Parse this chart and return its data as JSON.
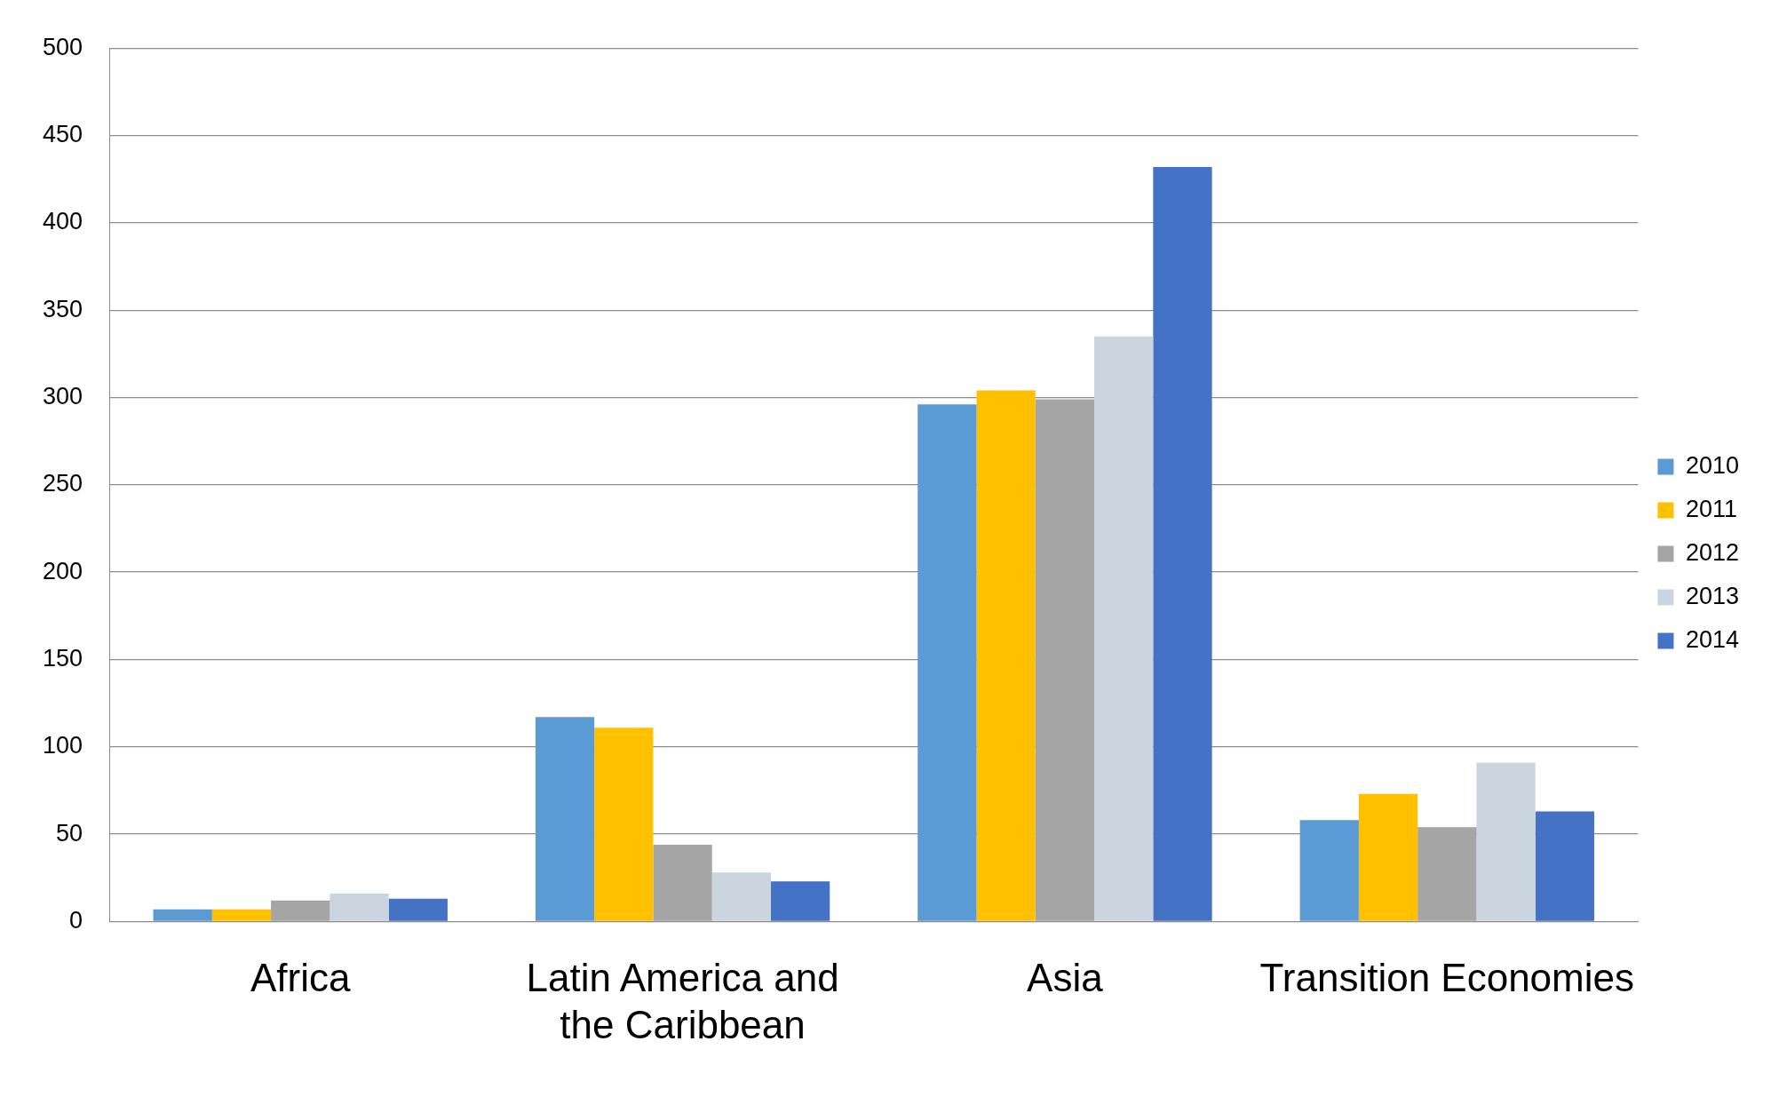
{
  "chart_data": {
    "type": "bar",
    "categories": [
      "Africa",
      "Latin America and the Caribbean",
      "Asia",
      "Transition Economies"
    ],
    "series": [
      {
        "name": "2010",
        "color": "#5b9bd5",
        "values": [
          7,
          117,
          296,
          58
        ]
      },
      {
        "name": "2011",
        "color": "#ffc000",
        "values": [
          7,
          111,
          304,
          73
        ]
      },
      {
        "name": "2012",
        "color": "#a5a5a5",
        "values": [
          12,
          44,
          299,
          54
        ]
      },
      {
        "name": "2013",
        "color": "#cbd5df",
        "values": [
          16,
          28,
          335,
          91
        ]
      },
      {
        "name": "2014",
        "color": "#4472c4",
        "values": [
          13,
          23,
          432,
          63
        ]
      }
    ],
    "ylim": [
      0,
      500
    ],
    "yticks": [
      0,
      50,
      100,
      150,
      200,
      250,
      300,
      350,
      400,
      450,
      500
    ],
    "grid": "y",
    "legend": "right"
  }
}
